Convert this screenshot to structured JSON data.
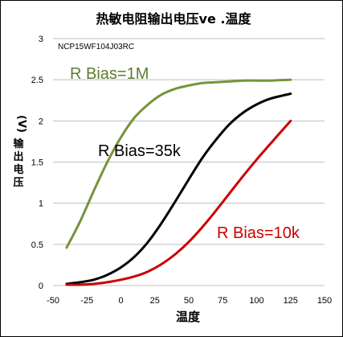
{
  "chart_data": {
    "type": "line",
    "title": "热敏电阻输出电压ve .温度",
    "subtitle": "NCP15WF104J03RC",
    "xlabel": "温度",
    "ylabel": "输出电压(V)",
    "xlim": [
      -50,
      150
    ],
    "ylim": [
      0,
      3
    ],
    "x_ticks": [
      "-50",
      "-25",
      "0",
      "25",
      "50",
      "75",
      "100",
      "125",
      "150"
    ],
    "y_ticks": [
      "0",
      "0.5",
      "1",
      "1.5",
      "2",
      "2.5",
      "3"
    ],
    "grid": true,
    "series": [
      {
        "name": "R Bias=1M",
        "color": "#77933C",
        "x": [
          -40,
          -30,
          -20,
          -10,
          0,
          10,
          20,
          30,
          40,
          50,
          60,
          70,
          80,
          90,
          100,
          110,
          125
        ],
        "y": [
          0.46,
          0.78,
          1.15,
          1.5,
          1.8,
          2.04,
          2.2,
          2.32,
          2.39,
          2.43,
          2.46,
          2.47,
          2.48,
          2.49,
          2.49,
          2.49,
          2.5
        ]
      },
      {
        "name": "R Bias=35k",
        "color": "#000000",
        "x": [
          -40,
          -30,
          -20,
          -10,
          0,
          10,
          20,
          30,
          40,
          50,
          60,
          70,
          80,
          90,
          100,
          110,
          125
        ],
        "y": [
          0.02,
          0.04,
          0.07,
          0.13,
          0.22,
          0.35,
          0.53,
          0.76,
          1.02,
          1.29,
          1.55,
          1.77,
          1.96,
          2.1,
          2.2,
          2.27,
          2.33
        ]
      },
      {
        "name": "R Bias=10k",
        "color": "#CC0000",
        "x": [
          -40,
          -30,
          -20,
          -10,
          0,
          10,
          20,
          30,
          40,
          50,
          60,
          70,
          80,
          90,
          100,
          110,
          125
        ],
        "y": [
          0.01,
          0.01,
          0.02,
          0.04,
          0.07,
          0.11,
          0.17,
          0.26,
          0.38,
          0.53,
          0.71,
          0.91,
          1.12,
          1.33,
          1.53,
          1.72,
          2.0
        ]
      }
    ]
  }
}
